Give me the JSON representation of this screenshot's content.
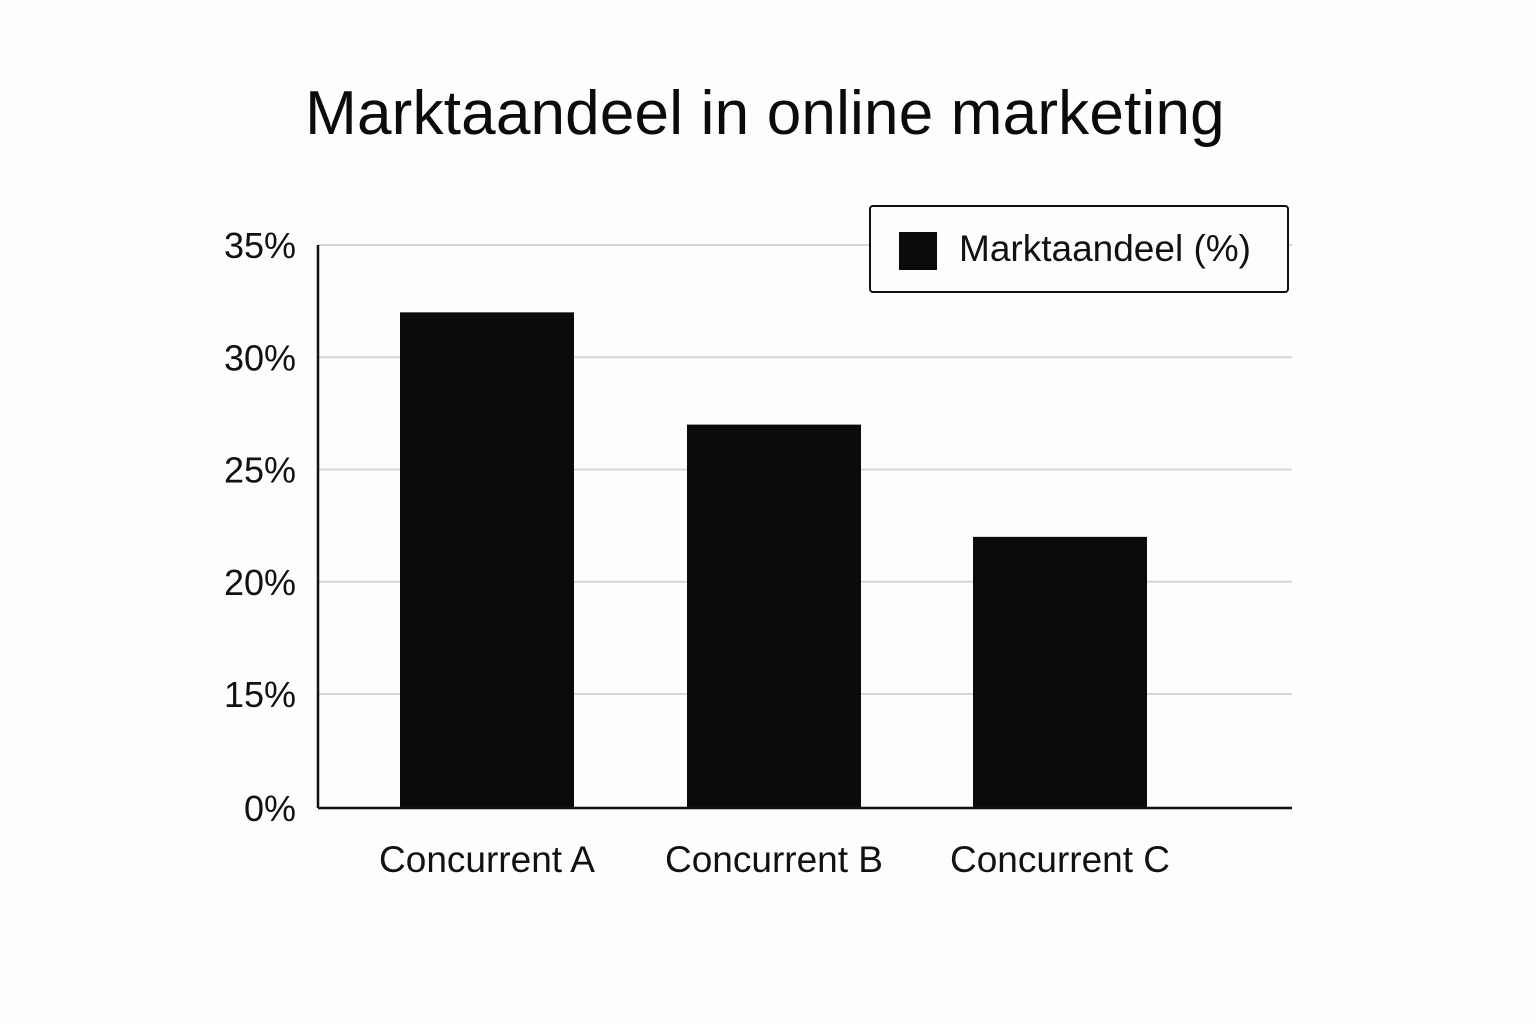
{
  "chart_data": {
    "type": "bar",
    "title": "Marktaandeel in online marketing",
    "xlabel": "",
    "ylabel": "",
    "categories": [
      "Concurrent A",
      "Concurrent B",
      "Concurrent C"
    ],
    "series": [
      {
        "name": "Marktaandeel (%)",
        "values": [
          32,
          27,
          22
        ],
        "color": "#0b0b0b"
      }
    ],
    "y_ticks": [
      {
        "value": 0,
        "label": "0%"
      },
      {
        "value": 15,
        "label": "15%"
      },
      {
        "value": 20,
        "label": "20%"
      },
      {
        "value": 25,
        "label": "25%"
      },
      {
        "value": 30,
        "label": "30%"
      },
      {
        "value": 35,
        "label": "35%"
      }
    ],
    "ylim": [
      0,
      35
    ],
    "axis_note": "y-axis jumps from 0% directly to 15% (broken scale)",
    "grid": true,
    "legend_position": "top-right"
  }
}
